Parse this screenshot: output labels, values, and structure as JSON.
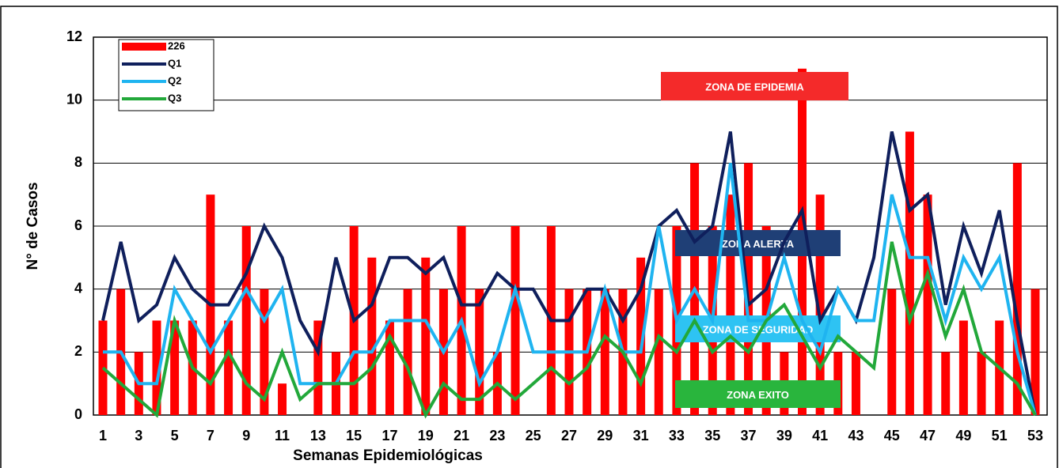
{
  "chart_data": {
    "type": "bar_line",
    "categories": [
      1,
      null,
      3,
      null,
      5,
      null,
      7,
      null,
      9,
      null,
      11,
      null,
      13,
      null,
      15,
      null,
      17,
      null,
      19,
      null,
      21,
      null,
      23,
      null,
      25,
      null,
      27,
      null,
      29,
      null,
      31,
      null,
      33,
      null,
      35,
      null,
      37,
      null,
      39,
      null,
      41,
      null,
      43,
      null,
      45,
      null,
      47,
      null,
      49,
      null,
      51,
      null,
      53
    ],
    "x_label": "Semanas Epidemiológicas",
    "y_label": "N° de Casos",
    "ylim": [
      0,
      12
    ],
    "yticks": [
      0,
      2,
      4,
      6,
      8,
      10,
      12
    ],
    "grid": true,
    "legend": "upper left",
    "series": [
      {
        "name": "226",
        "kind": "bar",
        "color": "#ff0000",
        "values": [
          3,
          4,
          2,
          3,
          3,
          3,
          7,
          3,
          6,
          4,
          1,
          0,
          3,
          2,
          6,
          5,
          3,
          4,
          5,
          4,
          6,
          4,
          2,
          6,
          0,
          6,
          4,
          4,
          4,
          4,
          5,
          4,
          6,
          8,
          6,
          7,
          8,
          6,
          2,
          11,
          7,
          2,
          2,
          0,
          4,
          9,
          7,
          2,
          3,
          2,
          3,
          8,
          4
        ]
      },
      {
        "name": "Q1",
        "kind": "line",
        "color": "#0f1f5c",
        "values": [
          3,
          5.5,
          3,
          3.5,
          5,
          4,
          3.5,
          3.5,
          4.5,
          6,
          5,
          3,
          2,
          5,
          3,
          3.5,
          5,
          5,
          4.5,
          5,
          3.5,
          3.5,
          4.5,
          4,
          4,
          3,
          3,
          4,
          4,
          3,
          4,
          6,
          6.5,
          5.5,
          6,
          9,
          3.5,
          4,
          5.5,
          6.5,
          3,
          4,
          3,
          5,
          9,
          6.5,
          7,
          3.5,
          6,
          4.5,
          6.5,
          3,
          0
        ]
      },
      {
        "name": "Q2",
        "kind": "line",
        "color": "#1fb4f0",
        "values": [
          2,
          2,
          1,
          1,
          4,
          3,
          2,
          3,
          4,
          3,
          4,
          1,
          1,
          1,
          2,
          2,
          3,
          3,
          3,
          2,
          3,
          1,
          2,
          4,
          2,
          2,
          2,
          2,
          4,
          2,
          2,
          6,
          3,
          4,
          3,
          8,
          3,
          3,
          5,
          3,
          2,
          4,
          3,
          3,
          7,
          5,
          5,
          3,
          5,
          4,
          5,
          2,
          0
        ]
      },
      {
        "name": "Q3",
        "kind": "line",
        "color": "#22a83a",
        "values": [
          1.5,
          1,
          0.5,
          0,
          3,
          1.5,
          1,
          2,
          1,
          0.5,
          2,
          0.5,
          1,
          1,
          1,
          1.5,
          2.5,
          1.5,
          0,
          1,
          0.5,
          0.5,
          1,
          0.5,
          1,
          1.5,
          1,
          1.5,
          2.5,
          2,
          1,
          2.5,
          2,
          3,
          2,
          2.5,
          2,
          3,
          3.5,
          2.5,
          1.5,
          2.5,
          2,
          1.5,
          5.5,
          3,
          4.5,
          2.5,
          4,
          2,
          1.5,
          1,
          0
        ]
      }
    ],
    "annotations": [
      {
        "text": "ZONA DE EPIDEMIA",
        "color": "#f42a2a"
      },
      {
        "text": "ZONA  ALERTA",
        "color": "#1f3f76"
      },
      {
        "text": "ZONA DE SEGURIDAD",
        "color": "#2ec3f3"
      },
      {
        "text": "ZONA  EXITO",
        "color": "#29b53d"
      }
    ]
  }
}
